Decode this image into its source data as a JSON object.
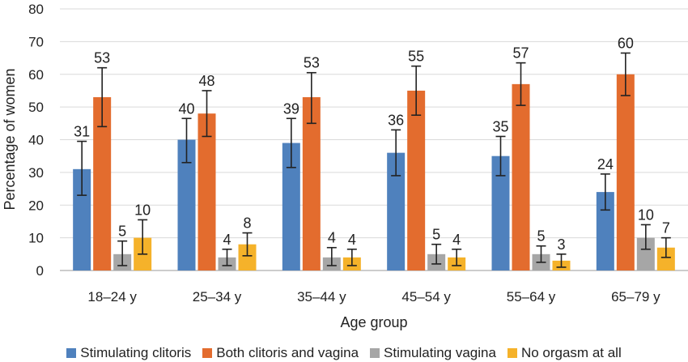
{
  "chart_data": {
    "type": "bar",
    "xlabel": "Age group",
    "ylabel": "Percentage of women",
    "ylim": [
      0,
      80
    ],
    "yticks": [
      0,
      10,
      20,
      30,
      40,
      50,
      60,
      70,
      80
    ],
    "grid": true,
    "legend_position": "bottom",
    "categories": [
      "18–24 y",
      "25–34 y",
      "35–44 y",
      "45–54 y",
      "55–64 y",
      "65–79 y"
    ],
    "series": [
      {
        "name": "Stimulating clitoris",
        "color": "#4f81bd",
        "values": [
          31,
          40,
          39,
          36,
          35,
          24
        ],
        "error_low": [
          23,
          33,
          31.5,
          29,
          29,
          18.5
        ],
        "error_high": [
          39.5,
          46.5,
          46.5,
          43,
          41,
          29.5
        ]
      },
      {
        "name": "Both clitoris and vagina",
        "color": "#e36c2e",
        "values": [
          53,
          48,
          53,
          55,
          57,
          60
        ],
        "error_low": [
          44,
          41,
          45,
          47.5,
          50.5,
          53.5
        ],
        "error_high": [
          62,
          55,
          60.5,
          62.5,
          63.5,
          66.5
        ]
      },
      {
        "name": "Stimulating vagina",
        "color": "#a6a6a6",
        "values": [
          5,
          4,
          4,
          5,
          5,
          10
        ],
        "error_low": [
          1.5,
          1.5,
          1.5,
          2,
          2.5,
          6.5
        ],
        "error_high": [
          9,
          6.5,
          7,
          8,
          7.5,
          14
        ]
      },
      {
        "name": "No orgasm at all",
        "color": "#f5b22a",
        "values": [
          10,
          8,
          4,
          4,
          3,
          7
        ],
        "error_low": [
          5,
          4.5,
          1.5,
          1.5,
          1,
          4
        ],
        "error_high": [
          15.5,
          11.5,
          6.5,
          6.5,
          5,
          10
        ]
      }
    ]
  }
}
